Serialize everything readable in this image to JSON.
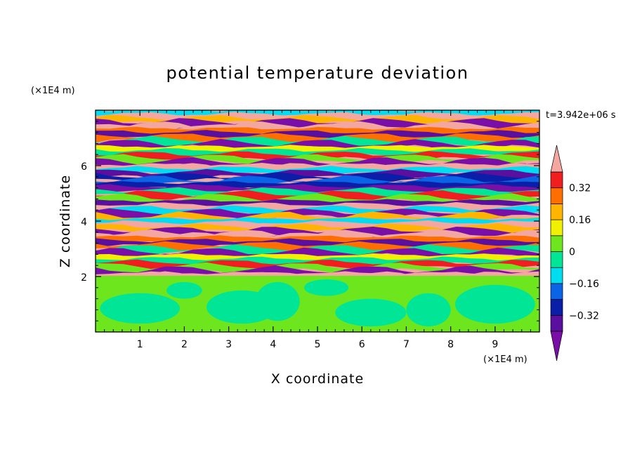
{
  "chart_data": {
    "type": "heatmap",
    "title": "potential temperature deviation",
    "xlabel": "X coordinate",
    "ylabel": "Z coordinate",
    "x_unit_label": "(×1E4 m)",
    "y_unit_label": "(×1E4 m)",
    "time_label": "t=3.942e+06 s",
    "xlim": [
      0,
      10
    ],
    "ylim": [
      0,
      8
    ],
    "x_ticks": [
      1,
      2,
      3,
      4,
      5,
      6,
      7,
      8,
      9
    ],
    "y_ticks": [
      2,
      4,
      6
    ],
    "x_tick_labels": [
      "1",
      "2",
      "3",
      "4",
      "5",
      "6",
      "7",
      "8",
      "9"
    ],
    "y_tick_labels": [
      "2",
      "4",
      "6"
    ],
    "lower_layer_top_z": 2,
    "colorbar": {
      "levels": [
        -0.4,
        -0.32,
        -0.24,
        -0.16,
        -0.08,
        0,
        0.08,
        0.16,
        0.24,
        0.32,
        0.4
      ],
      "tick_values": [
        0.32,
        0.16,
        0,
        -0.16,
        -0.32
      ],
      "tick_labels": [
        "0.32",
        "0.16",
        "0",
        "−0.16",
        "−0.32"
      ],
      "colors": [
        "#7a0fa8",
        "#5a0f9e",
        "#0a1ea8",
        "#0a64e6",
        "#00dcf0",
        "#00e696",
        "#6ee61e",
        "#f0f000",
        "#ffb400",
        "#ff6e00",
        "#f01e1e",
        "#f4a6a0"
      ],
      "extend": "both"
    }
  }
}
